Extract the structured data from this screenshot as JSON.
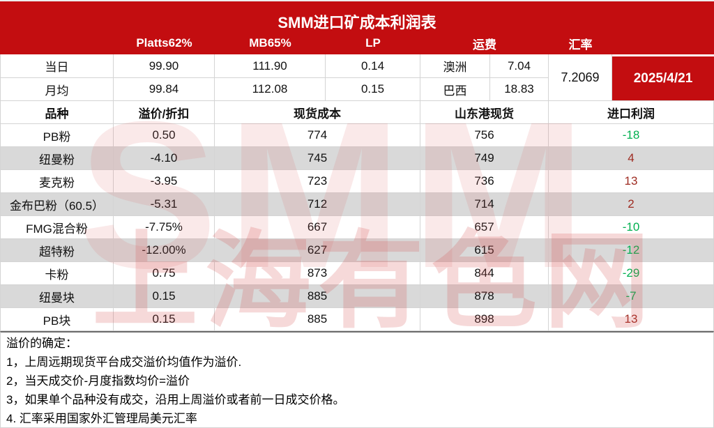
{
  "chart_data": {
    "type": "table",
    "title": "SMM进口矿成本利润表",
    "date": "2025/4/21",
    "exchange_rate": "7.2069",
    "price_header": {
      "platts": "Platts62%",
      "mb": "MB65%",
      "lp": "LP",
      "freight": "运费",
      "fx": "汇率"
    },
    "price_rows": [
      {
        "label": "当日",
        "platts": "99.90",
        "mb": "111.90",
        "lp": "0.14",
        "route": "澳洲",
        "freight": "7.04"
      },
      {
        "label": "月均",
        "platts": "99.84",
        "mb": "112.08",
        "lp": "0.15",
        "route": "巴西",
        "freight": "18.83"
      }
    ],
    "cost_header": {
      "variety": "品种",
      "premium": "溢价/折扣",
      "spot_cost": "现货成本",
      "shandong_spot": "山东港现货",
      "import_profit": "进口利润"
    },
    "cost_rows": [
      {
        "variety": "PB粉",
        "premium": "0.50",
        "spot_cost": "774",
        "shandong_spot": "756",
        "import_profit": "-18"
      },
      {
        "variety": "纽曼粉",
        "premium": "-4.10",
        "spot_cost": "745",
        "shandong_spot": "749",
        "import_profit": "4"
      },
      {
        "variety": "麦克粉",
        "premium": "-3.95",
        "spot_cost": "723",
        "shandong_spot": "736",
        "import_profit": "13"
      },
      {
        "variety": "金布巴粉（60.5）",
        "premium": "-5.31",
        "spot_cost": "712",
        "shandong_spot": "714",
        "import_profit": "2"
      },
      {
        "variety": "FMG混合粉",
        "premium": "-7.75%",
        "spot_cost": "667",
        "shandong_spot": "657",
        "import_profit": "-10"
      },
      {
        "variety": "超特粉",
        "premium": "-12.00%",
        "spot_cost": "627",
        "shandong_spot": "615",
        "import_profit": "-12"
      },
      {
        "variety": "卡粉",
        "premium": "0.75",
        "spot_cost": "873",
        "shandong_spot": "844",
        "import_profit": "-29"
      },
      {
        "variety": "纽曼块",
        "premium": "0.15",
        "spot_cost": "885",
        "shandong_spot": "878",
        "import_profit": "-7"
      },
      {
        "variety": "PB块",
        "premium": "0.15",
        "spot_cost": "885",
        "shandong_spot": "898",
        "import_profit": "13"
      }
    ],
    "notes_heading": "溢价的确定：",
    "notes": [
      "1，上周远期现货平台成交溢价均值作为溢价.",
      "2，当天成交价-月度指数均价=溢价",
      "3，如果单个品种没有成交，沿用上周溢价或者前一日成交价格。",
      "4. 汇率采用国家外汇管理局美元汇率"
    ]
  },
  "watermark": {
    "primary": "SMM",
    "secondary": "上海有色网"
  },
  "colors": {
    "header_red": "#C30D10",
    "profit_positive_red": "#9E2B21",
    "profit_negative_green": "#00B050",
    "row_alt_gray": "#D9D9D9"
  }
}
